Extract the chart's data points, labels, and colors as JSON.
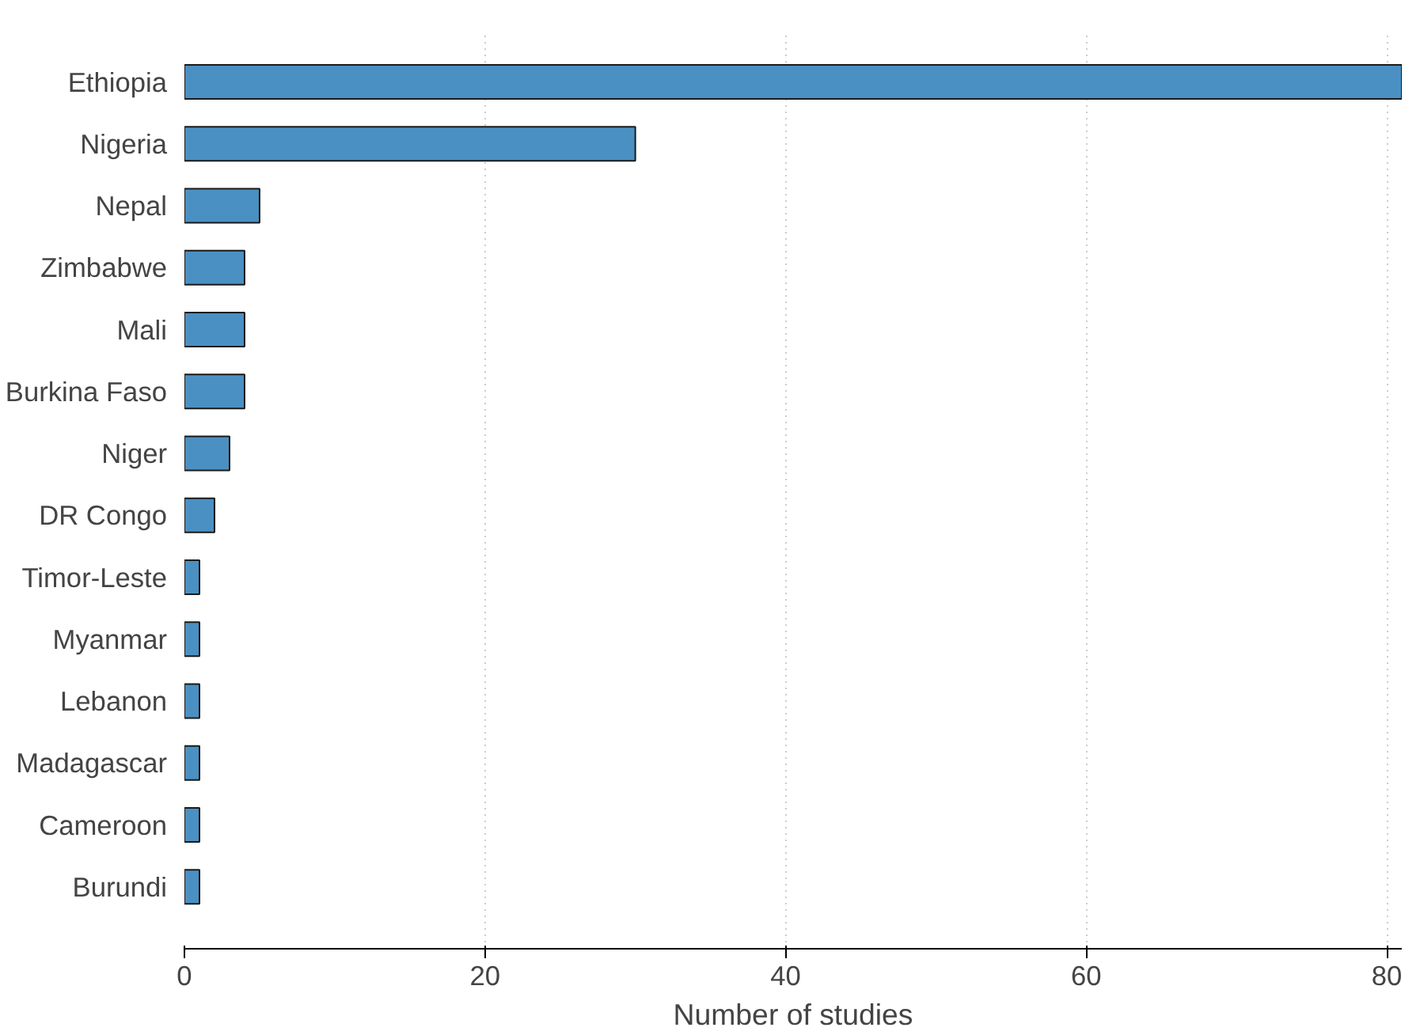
{
  "chart_data": {
    "type": "bar",
    "orientation": "horizontal",
    "xlabel": "Number of studies",
    "categories": [
      "Ethiopia",
      "Nigeria",
      "Nepal",
      "Zimbabwe",
      "Mali",
      "Burkina Faso",
      "Niger",
      "DR Congo",
      "Timor-Leste",
      "Myanmar",
      "Lebanon",
      "Madagascar",
      "Cameroon",
      "Burundi"
    ],
    "values": [
      81,
      30,
      5,
      4,
      4,
      4,
      3,
      2,
      1,
      1,
      1,
      1,
      1,
      1
    ],
    "color": "#4a90c2",
    "xlim": [
      0,
      81
    ],
    "xticks": [
      0,
      20,
      40,
      60,
      80
    ],
    "grid": "x"
  }
}
